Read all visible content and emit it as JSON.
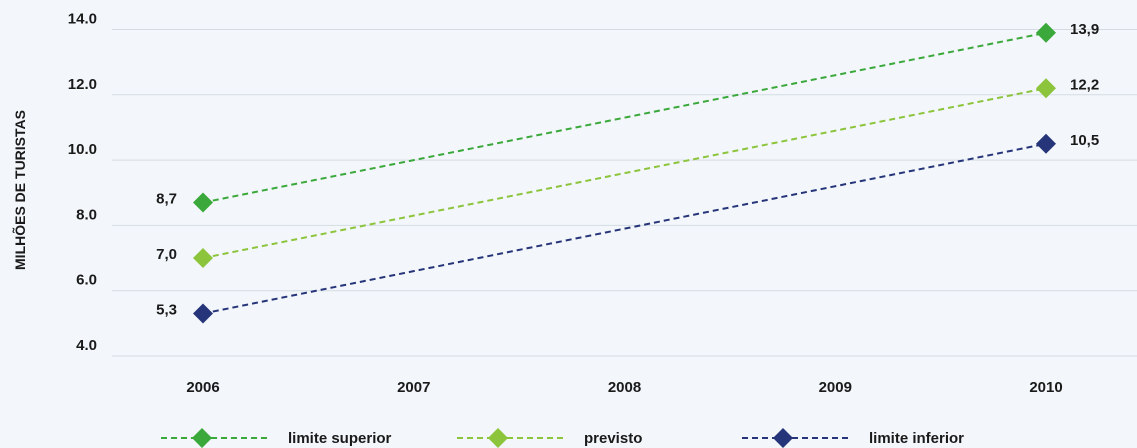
{
  "chart_data": {
    "type": "line",
    "x": [
      "2006",
      "2007",
      "2008",
      "2009",
      "2010"
    ],
    "ylabel": "MILHÕES DE TURISTAS",
    "ylim": [
      4.0,
      14.0
    ],
    "yticks": [
      "4.0",
      "6.0",
      "8.0",
      "10.0",
      "12.0",
      "14.0"
    ],
    "grid": "horizontal",
    "legend_position": "bottom",
    "series": [
      {
        "name": "limite superior",
        "color": "#3aa83a",
        "points": [
          {
            "x": "2006",
            "y": 8.7
          },
          {
            "x": "2010",
            "y": 13.9
          }
        ],
        "labels": [
          "8,7",
          "13,9"
        ]
      },
      {
        "name": "previsto",
        "color": "#8cc43c",
        "points": [
          {
            "x": "2006",
            "y": 7.0
          },
          {
            "x": "2010",
            "y": 12.2
          }
        ],
        "labels": [
          "7,0",
          "12,2"
        ]
      },
      {
        "name": "limite inferior",
        "color": "#263579",
        "points": [
          {
            "x": "2006",
            "y": 5.3
          },
          {
            "x": "2010",
            "y": 10.5
          }
        ],
        "labels": [
          "5,3",
          "10,5"
        ]
      }
    ]
  }
}
